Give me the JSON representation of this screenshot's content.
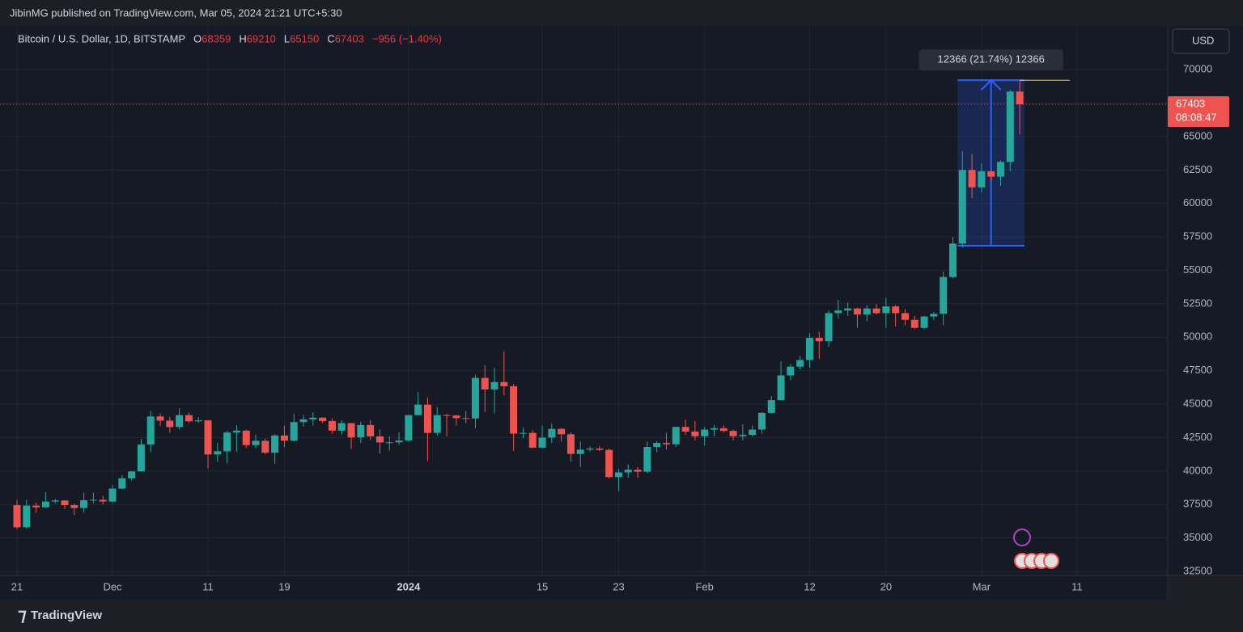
{
  "chart_data": {
    "type": "candlestick",
    "publisher": "JibinMG published on TradingView.com, Mar 05, 2024 21:21 UTC+5:30",
    "title": "Bitcoin / U.S. Dollar, 1D, BITSTAMP",
    "ohlc_letters": [
      "O",
      "H",
      "L",
      "C"
    ],
    "change": "−956 (−1.40%)",
    "currency": "USD",
    "countdown": "08:08:47",
    "brand": "TradingView",
    "up_color": "#26a69a",
    "down_color": "#ef5350",
    "grid": true,
    "ylim": [
      32200,
      73270
    ],
    "yticks": [
      32500,
      35000,
      37500,
      40000,
      42500,
      45000,
      47500,
      50000,
      52500,
      55000,
      57500,
      60000,
      62500,
      65000,
      67500,
      70000
    ],
    "xlim": [
      -1.78,
      120.5
    ],
    "xticks": [
      {
        "value": 0,
        "label": "21"
      },
      {
        "value": 10,
        "label": "Dec"
      },
      {
        "value": 20,
        "label": "11"
      },
      {
        "value": 28,
        "label": "19"
      },
      {
        "value": 41,
        "label": "2024"
      },
      {
        "value": 55,
        "label": "15"
      },
      {
        "value": 63,
        "label": "23"
      },
      {
        "value": 72,
        "label": "Feb"
      },
      {
        "value": 83,
        "label": "12"
      },
      {
        "value": 91,
        "label": "20"
      },
      {
        "value": 101,
        "label": "Mar"
      },
      {
        "value": 111,
        "label": "11"
      }
    ],
    "open": [
      37450,
      35800,
      37420,
      37290,
      37720,
      37800,
      37450,
      37240,
      37820,
      37850,
      37720,
      38690,
      39460,
      39970,
      41980,
      44080,
      43770,
      43290,
      44180,
      43720,
      43790,
      41240,
      41480,
      42880,
      43020,
      41940,
      42260,
      41370,
      42660,
      42270,
      43660,
      43860,
      43990,
      43740,
      43020,
      43580,
      42520,
      43440,
      42590,
      42140,
      42150,
      42280,
      44180,
      44960,
      42850,
      44180,
      44150,
      43960,
      43930,
      46960,
      46100,
      46650,
      46340,
      42800,
      42850,
      41750,
      42500,
      43150,
      42750,
      41280,
      41600,
      41680,
      41580,
      39550,
      39900,
      40100,
      39950,
      41800,
      42100,
      42000,
      43300,
      42950,
      42600,
      43100,
      43200,
      43000,
      42600,
      42700,
      43100,
      44350,
      45300,
      47150,
      47800,
      48300,
      49950,
      49700,
      51800,
      52000,
      52150,
      51700,
      52150,
      51800,
      52300,
      51800,
      51300,
      50700,
      51550,
      51750,
      54500,
      57000,
      62500,
      61200,
      62400,
      62000,
      63100,
      68359
    ],
    "high": [
      37850,
      37850,
      37650,
      38420,
      37900,
      37820,
      37570,
      38380,
      38400,
      38150,
      38980,
      39700,
      40000,
      42400,
      44500,
      44300,
      44050,
      44700,
      44370,
      44040,
      43800,
      42100,
      43000,
      43430,
      43090,
      42720,
      42430,
      42750,
      43400,
      44280,
      44200,
      44400,
      44000,
      43940,
      43800,
      43600,
      43680,
      43800,
      43120,
      42600,
      42890,
      44190,
      45900,
      45500,
      44780,
      44300,
      44200,
      44500,
      47200,
      47900,
      47700,
      48950,
      46500,
      43250,
      43050,
      43400,
      43570,
      43200,
      42900,
      42200,
      41850,
      41880,
      41680,
      40150,
      40500,
      40300,
      42200,
      42250,
      42850,
      43300,
      43850,
      43750,
      43300,
      43450,
      43400,
      43100,
      43500,
      43400,
      44400,
      45600,
      48200,
      48000,
      48600,
      50300,
      50400,
      52000,
      52800,
      52600,
      52200,
      52400,
      52500,
      52950,
      52400,
      52100,
      51600,
      51600,
      51900,
      54900,
      57500,
      63900,
      63700,
      63000,
      62400,
      63200,
      68500,
      69210
    ],
    "low": [
      35650,
      35700,
      36870,
      37250,
      37600,
      37170,
      36720,
      36880,
      37600,
      37500,
      37620,
      38650,
      39300,
      39970,
      41400,
      43360,
      42850,
      43100,
      43600,
      43600,
      40200,
      40680,
      40580,
      41450,
      41720,
      41700,
      41250,
      40550,
      41800,
      42200,
      43330,
      43400,
      43600,
      42800,
      42720,
      41650,
      42100,
      42320,
      41300,
      41530,
      41970,
      42200,
      44150,
      40750,
      42650,
      42600,
      43400,
      43580,
      43200,
      44400,
      44300,
      45650,
      41500,
      42450,
      41700,
      41700,
      42100,
      42200,
      40700,
      40300,
      41450,
      41500,
      39450,
      38500,
      39500,
      39500,
      39850,
      41400,
      41600,
      41800,
      42700,
      42300,
      41900,
      42600,
      42900,
      42300,
      42300,
      42600,
      42800,
      44300,
      45300,
      46800,
      47600,
      47700,
      48400,
      49300,
      51400,
      51600,
      50700,
      51200,
      51700,
      50700,
      50800,
      50900,
      50600,
      50600,
      51300,
      50900,
      54400,
      56700,
      60400,
      60800,
      61700,
      61300,
      62400,
      65150
    ],
    "close": [
      35800,
      37420,
      37290,
      37720,
      37800,
      37450,
      37240,
      37820,
      37850,
      37720,
      38690,
      39460,
      39970,
      41980,
      44080,
      43770,
      43290,
      44180,
      43720,
      43790,
      41240,
      41480,
      42880,
      43020,
      41940,
      42260,
      41370,
      42660,
      42270,
      43660,
      43860,
      43990,
      43740,
      43020,
      43580,
      42520,
      43440,
      42590,
      42140,
      42150,
      42280,
      44180,
      44960,
      42850,
      44180,
      44150,
      43960,
      43930,
      46960,
      46100,
      46650,
      46340,
      42800,
      42850,
      41750,
      42500,
      43150,
      42750,
      41280,
      41600,
      41680,
      41580,
      39550,
      39900,
      40100,
      39950,
      41800,
      42100,
      42000,
      43300,
      42950,
      42600,
      43100,
      43200,
      43000,
      42600,
      42700,
      43100,
      44350,
      45300,
      47150,
      47800,
      48300,
      49950,
      49700,
      51800,
      52000,
      52150,
      51700,
      52150,
      51800,
      52300,
      51800,
      51300,
      50700,
      51550,
      51750,
      54500,
      57000,
      62500,
      61200,
      62400,
      62000,
      63100,
      68359,
      67403
    ],
    "measure": {
      "label": "12366 (21.74%) 12366",
      "from": 56844,
      "to": 69210
    }
  }
}
